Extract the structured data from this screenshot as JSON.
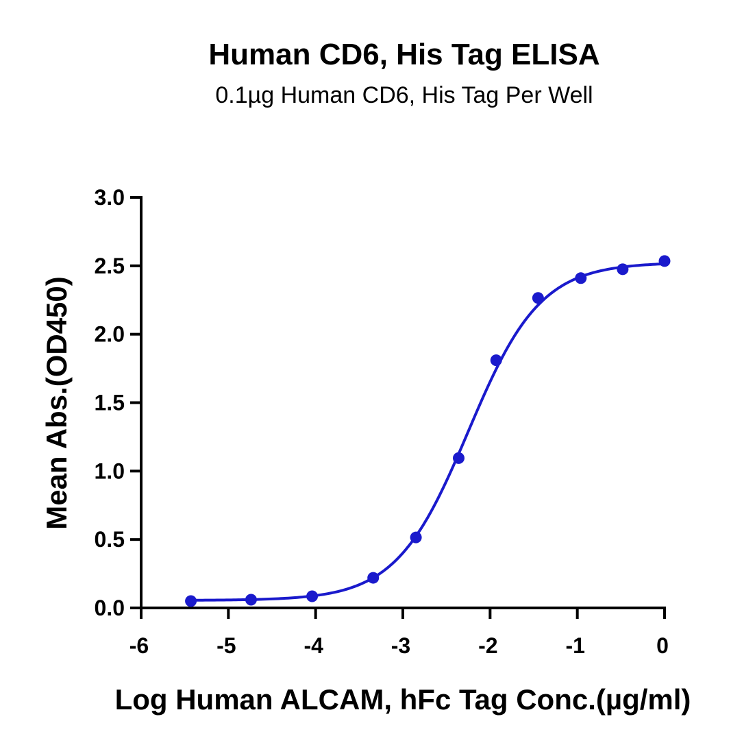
{
  "chart_data": {
    "type": "scatter",
    "title": "Human CD6, His Tag ELISA",
    "subtitle": "0.1µg Human CD6, His Tag Per Well",
    "xlabel": "Log Human ALCAM, hFc Tag Conc.(µg/ml)",
    "ylabel": "Mean Abs.(OD450)",
    "xlim": [
      -6,
      0
    ],
    "ylim": [
      0,
      3.0
    ],
    "xticks": [
      "-6",
      "-5",
      "-4",
      "-3",
      "-2",
      "-1",
      "0"
    ],
    "yticks": [
      "0.0",
      "0.5",
      "1.0",
      "1.5",
      "2.0",
      "2.5",
      "3.0"
    ],
    "grid": false,
    "series": [
      {
        "color": "#1a1acc",
        "x": [
          -5.43,
          -4.74,
          -4.04,
          -3.34,
          -2.85,
          -2.36,
          -1.93,
          -1.45,
          -0.96,
          -0.48,
          0.0
        ],
        "y": [
          0.05,
          0.06,
          0.085,
          0.22,
          0.515,
          1.095,
          1.81,
          2.265,
          2.41,
          2.475,
          2.535
        ],
        "fit_curve": {
          "model": "4PL",
          "bottom": 0.055,
          "top": 2.525,
          "logEC50": -2.25,
          "hill": 1.05
        }
      }
    ]
  }
}
